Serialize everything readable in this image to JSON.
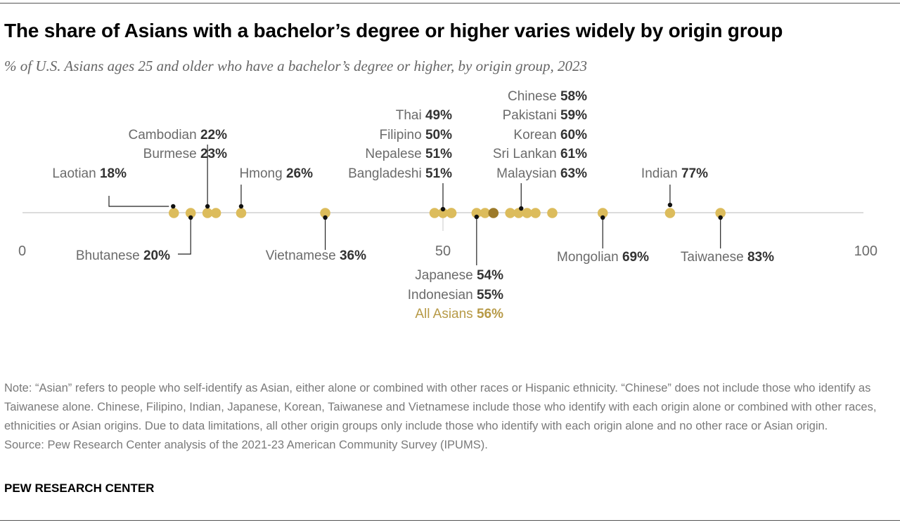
{
  "title": "The share of Asians with a bachelor’s degree or higher varies widely by origin group",
  "subtitle": "% of U.S. Asians ages 25 and older who have a bachelor’s degree or higher, by origin group, 2023",
  "note": [
    "Note: “Asian” refers to people who self-identify as Asian, either alone or combined with other races or Hispanic ethnicity. “Chinese” does not include those who identify as Taiwanese alone. Chinese, Filipino, Indian, Japanese, Korean, Taiwanese and Vietnamese include those who identify with each origin alone or combined with other races, ethnicities or Asian origins. Due to data limitations, all other origin groups only include those who identify with each origin alone and no other race or Asian origin.",
    "Source: Pew Research Center analysis of the 2021-23 American Community Survey (IPUMS)."
  ],
  "brand": "PEW RESEARCH CENTER",
  "colors": {
    "dot": "#dcbc5c",
    "highlight_dot": "#9c7a2a",
    "highlight_text": "#b79a47",
    "axis": "#c8c8c8"
  },
  "chart_data": {
    "type": "scatter",
    "title": "The share of Asians with a bachelor’s degree or higher varies widely by origin group",
    "xlim": [
      0,
      100
    ],
    "x_ticks": [
      "0",
      "50",
      "100"
    ],
    "grid": false,
    "points": [
      {
        "name": "Laotian",
        "value": 18,
        "label": "18%"
      },
      {
        "name": "Bhutanese",
        "value": 20,
        "label": "20%"
      },
      {
        "name": "Cambodian",
        "value": 22,
        "label": "22%"
      },
      {
        "name": "Burmese",
        "value": 23,
        "label": "23%"
      },
      {
        "name": "Hmong",
        "value": 26,
        "label": "26%"
      },
      {
        "name": "Vietnamese",
        "value": 36,
        "label": "36%"
      },
      {
        "name": "Thai",
        "value": 49,
        "label": "49%"
      },
      {
        "name": "Filipino",
        "value": 50,
        "label": "50%"
      },
      {
        "name": "Nepalese",
        "value": 51,
        "label": "51%"
      },
      {
        "name": "Bangladeshi",
        "value": 51,
        "label": "51%"
      },
      {
        "name": "Japanese",
        "value": 54,
        "label": "54%"
      },
      {
        "name": "Indonesian",
        "value": 55,
        "label": "55%"
      },
      {
        "name": "All Asians",
        "value": 56,
        "label": "56%",
        "highlight": true
      },
      {
        "name": "Chinese",
        "value": 58,
        "label": "58%"
      },
      {
        "name": "Pakistani",
        "value": 59,
        "label": "59%"
      },
      {
        "name": "Korean",
        "value": 60,
        "label": "60%"
      },
      {
        "name": "Sri Lankan",
        "value": 61,
        "label": "61%"
      },
      {
        "name": "Malaysian",
        "value": 63,
        "label": "63%"
      },
      {
        "name": "Mongolian",
        "value": 69,
        "label": "69%"
      },
      {
        "name": "Indian",
        "value": 77,
        "label": "77%"
      },
      {
        "name": "Taiwanese",
        "value": 83,
        "label": "83%"
      }
    ]
  }
}
